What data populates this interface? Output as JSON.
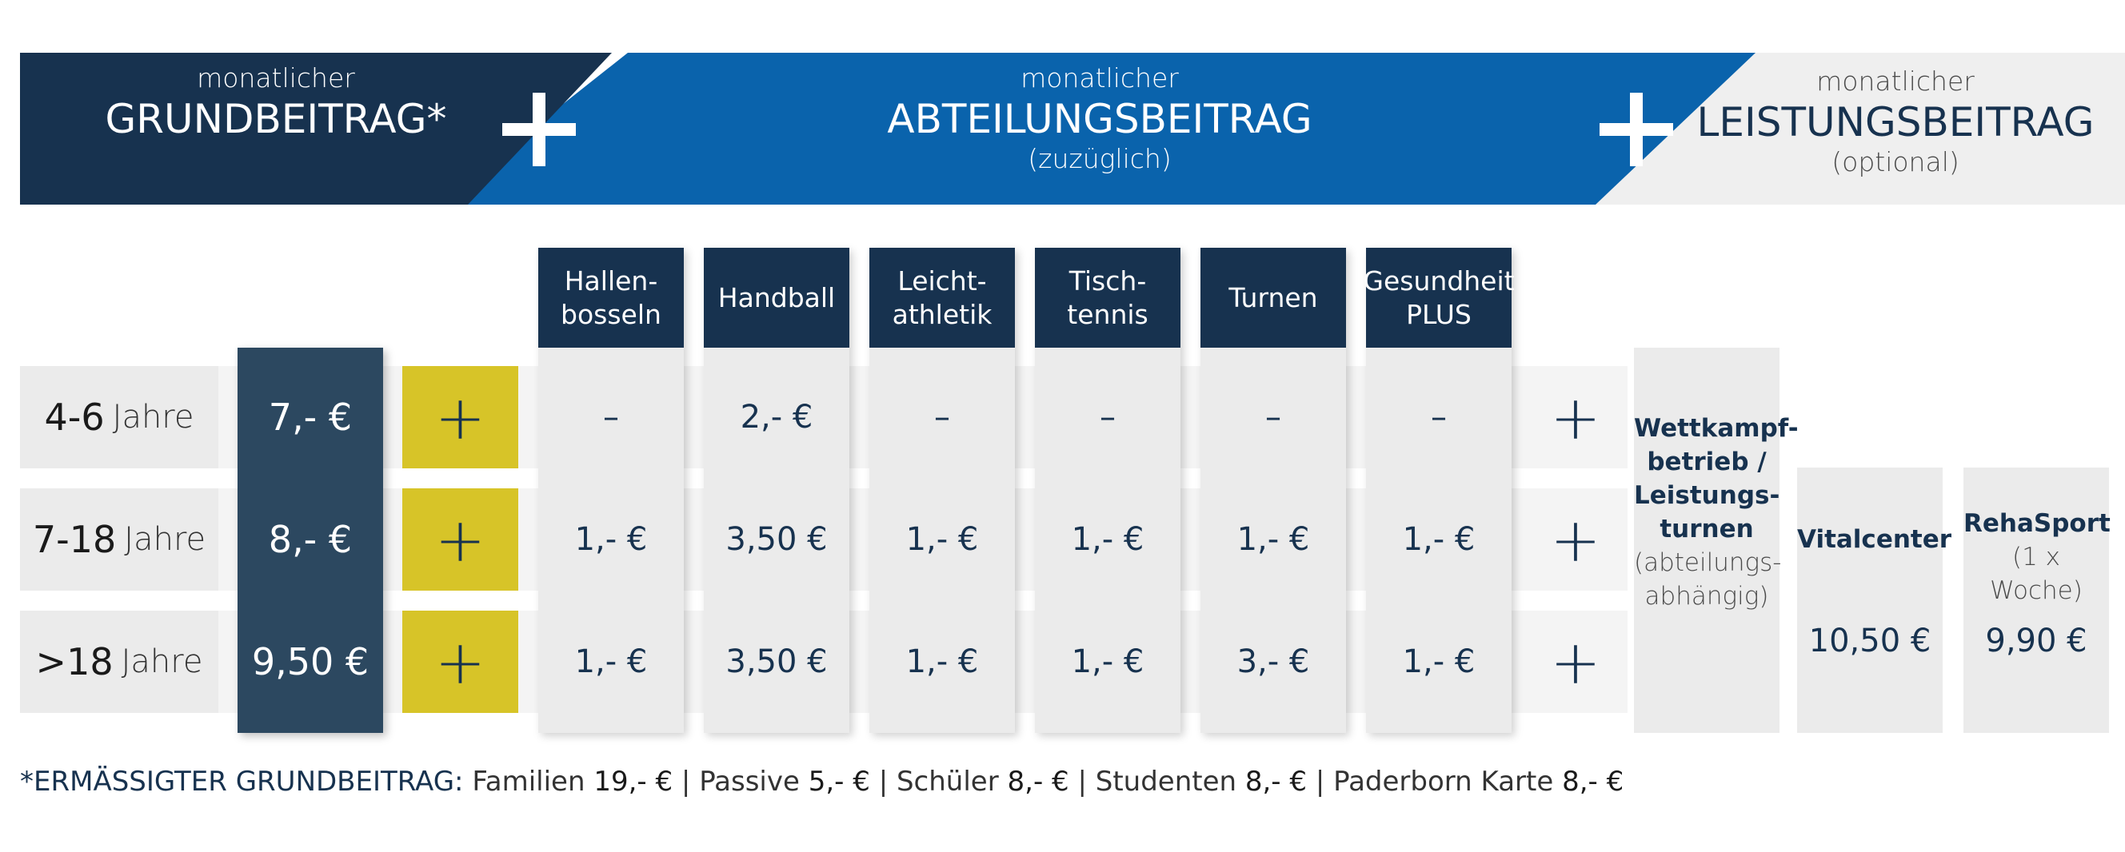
{
  "banner": {
    "grund": {
      "small": "monatlicher",
      "big": "GRUNDBEITRAG*"
    },
    "abteilung": {
      "small": "monatlicher",
      "big": "ABTEILUNGSBEITRAG",
      "sub": "(zuzüglich)"
    },
    "leistung": {
      "small": "monatlicher",
      "big": "LEISTUNGSBEITRAG",
      "sub": "(optional)"
    }
  },
  "departments": [
    {
      "line1": "Hallen-",
      "line2": "bosseln"
    },
    {
      "line1": "Handball",
      "line2": ""
    },
    {
      "line1": "Leicht-",
      "line2": "athletik"
    },
    {
      "line1": "Tisch-",
      "line2": "tennis"
    },
    {
      "line1": "Turnen",
      "line2": ""
    },
    {
      "line1": "Gesundheit",
      "line2": "PLUS"
    }
  ],
  "rows": [
    {
      "age_num": "4-6",
      "age_unit": "Jahre",
      "grund": "7,- €",
      "plus": "+",
      "dept": [
        "–",
        "2,- €",
        "–",
        "–",
        "–",
        "–"
      ],
      "row_plus": "+"
    },
    {
      "age_num": "7-18",
      "age_unit": "Jahre",
      "grund": "8,- €",
      "plus": "+",
      "dept": [
        "1,- €",
        "3,50 €",
        "1,- €",
        "1,- €",
        "1,- €",
        "1,- €"
      ],
      "row_plus": "+"
    },
    {
      "age_num": ">18",
      "age_unit": "Jahre",
      "grund": "9,50 €",
      "plus": "+",
      "dept": [
        "1,- €",
        "3,50 €",
        "1,- €",
        "1,- €",
        "3,- €",
        "1,- €"
      ],
      "row_plus": "+"
    }
  ],
  "performance": {
    "wettkampf": {
      "l1": "Wettkampf-",
      "l2": "betrieb /",
      "l3": "Leistungs-",
      "l4": "turnen",
      "l5": "(abteilungs-",
      "l6": "abhängig)"
    },
    "vitalcenter": {
      "label": "Vitalcenter",
      "price": "10,50 €"
    },
    "rehasport": {
      "label": "RehaSport",
      "sub": "(1 x Woche)",
      "price": "9,90 €"
    }
  },
  "footer": {
    "lead": "*ERMÄSSIGTER GRUNDBEITRAG:",
    "items": [
      {
        "label": "Familien",
        "value": "19,- €",
        "sep": " |"
      },
      {
        "label": "Passive",
        "value": "5,- €",
        "sep": " |"
      },
      {
        "label": "Schüler",
        "value": "8,- €",
        "sep": " |"
      },
      {
        "label": "Studenten",
        "value": "8,- €",
        "sep": " |"
      },
      {
        "label": "Paderborn Karte",
        "value": "8,- €",
        "sep": ""
      }
    ]
  }
}
